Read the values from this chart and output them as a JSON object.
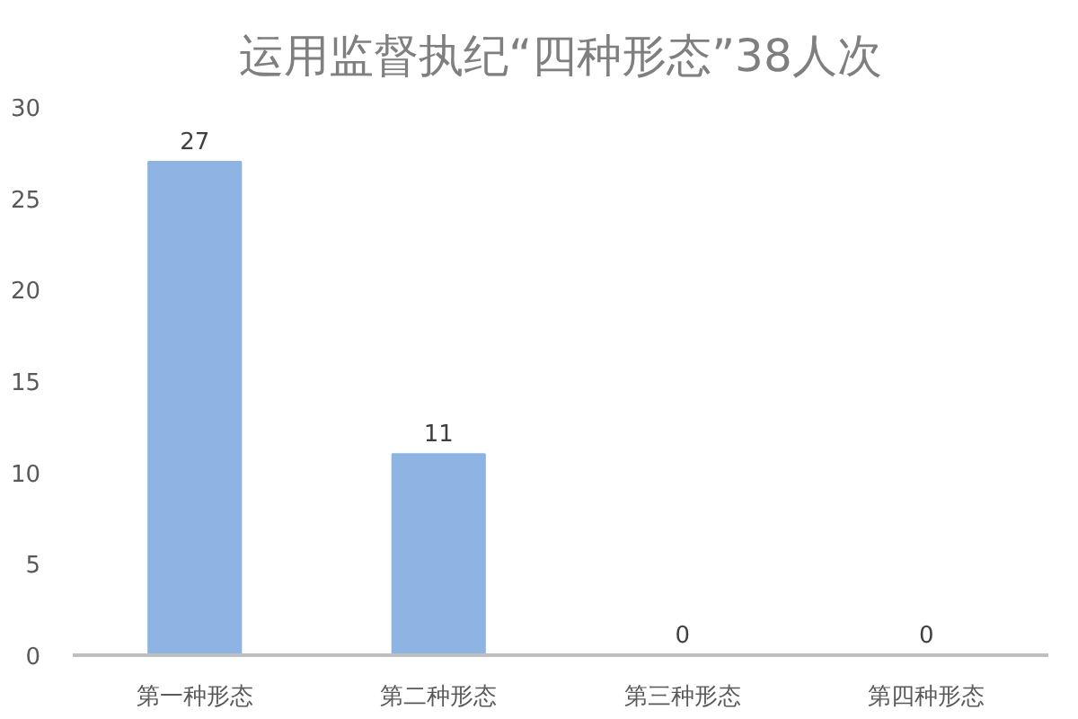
{
  "chart_data": {
    "type": "bar",
    "title": "运用监督执纪“四种形态”38人次",
    "categories": [
      "第一种形态",
      "第二种形态",
      "第三种形态",
      "第四种形态"
    ],
    "values": [
      27,
      11,
      0,
      0
    ],
    "color": "#8db4e2",
    "ylim": [
      0,
      30
    ],
    "yticks": [
      0,
      5,
      10,
      15,
      20,
      25,
      30
    ],
    "grid": false,
    "data_labels": true
  }
}
